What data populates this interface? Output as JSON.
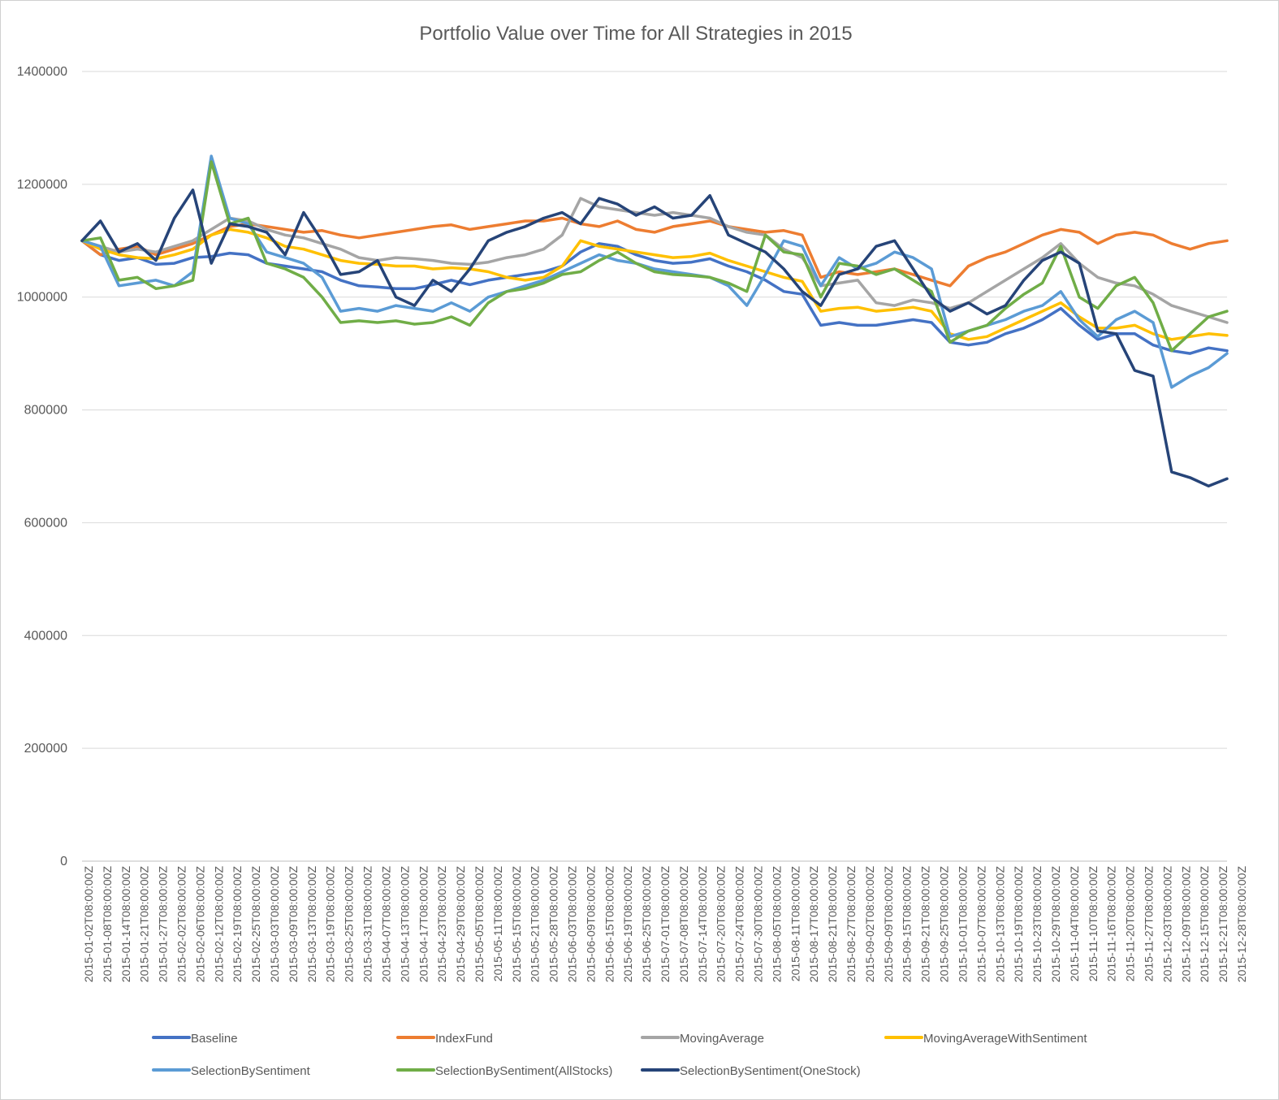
{
  "chart_data": {
    "type": "line",
    "title": "Portfolio Value over Time for All Strategies in 2015",
    "xlabel": "",
    "ylabel": "",
    "ylim": [
      0,
      1400000
    ],
    "yticks": [
      0,
      200000,
      400000,
      600000,
      800000,
      1000000,
      1200000,
      1400000
    ],
    "grid": true,
    "legend": "bottom",
    "x_tick_labels": [
      "2015-01-02T08:00:00Z",
      "2015-01-08T08:00:00Z",
      "2015-01-14T08:00:00Z",
      "2015-01-21T08:00:00Z",
      "2015-01-27T08:00:00Z",
      "2015-02-02T08:00:00Z",
      "2015-02-06T08:00:00Z",
      "2015-02-12T08:00:00Z",
      "2015-02-19T08:00:00Z",
      "2015-02-25T08:00:00Z",
      "2015-03-03T08:00:00Z",
      "2015-03-09T08:00:00Z",
      "2015-03-13T08:00:00Z",
      "2015-03-19T08:00:00Z",
      "2015-03-25T08:00:00Z",
      "2015-03-31T08:00:00Z",
      "2015-04-07T08:00:00Z",
      "2015-04-13T08:00:00Z",
      "2015-04-17T08:00:00Z",
      "2015-04-23T08:00:00Z",
      "2015-04-29T08:00:00Z",
      "2015-05-05T08:00:00Z",
      "2015-05-11T08:00:00Z",
      "2015-05-15T08:00:00Z",
      "2015-05-21T08:00:00Z",
      "2015-05-28T08:00:00Z",
      "2015-06-03T08:00:00Z",
      "2015-06-09T08:00:00Z",
      "2015-06-15T08:00:00Z",
      "2015-06-19T08:00:00Z",
      "2015-06-25T08:00:00Z",
      "2015-07-01T08:00:00Z",
      "2015-07-08T08:00:00Z",
      "2015-07-14T08:00:00Z",
      "2015-07-20T08:00:00Z",
      "2015-07-24T08:00:00Z",
      "2015-07-30T08:00:00Z",
      "2015-08-05T08:00:00Z",
      "2015-08-11T08:00:00Z",
      "2015-08-17T08:00:00Z",
      "2015-08-21T08:00:00Z",
      "2015-08-27T08:00:00Z",
      "2015-09-02T08:00:00Z",
      "2015-09-09T08:00:00Z",
      "2015-09-15T08:00:00Z",
      "2015-09-21T08:00:00Z",
      "2015-09-25T08:00:00Z",
      "2015-10-01T08:00:00Z",
      "2015-10-07T08:00:00Z",
      "2015-10-13T08:00:00Z",
      "2015-10-19T08:00:00Z",
      "2015-10-23T08:00:00Z",
      "2015-10-29T08:00:00Z",
      "2015-11-04T08:00:00Z",
      "2015-11-10T08:00:00Z",
      "2015-11-16T08:00:00Z",
      "2015-11-20T08:00:00Z",
      "2015-11-27T08:00:00Z",
      "2015-12-03T08:00:00Z",
      "2015-12-09T08:00:00Z",
      "2015-12-15T08:00:00Z",
      "2015-12-21T08:00:00Z",
      "2015-12-28T08:00:00Z"
    ],
    "series": [
      {
        "name": "Baseline",
        "color": "#4472c4",
        "values": [
          1100000,
          1075000,
          1065000,
          1070000,
          1058000,
          1060000,
          1070000,
          1072000,
          1078000,
          1075000,
          1060000,
          1055000,
          1050000,
          1045000,
          1030000,
          1020000,
          1018000,
          1015000,
          1015000,
          1022000,
          1030000,
          1022000,
          1030000,
          1035000,
          1040000,
          1045000,
          1055000,
          1080000,
          1095000,
          1090000,
          1075000,
          1065000,
          1060000,
          1062000,
          1068000,
          1055000,
          1045000,
          1030000,
          1010000,
          1005000,
          950000,
          955000,
          950000,
          950000,
          955000,
          960000,
          955000,
          920000,
          915000,
          920000,
          935000,
          945000,
          960000,
          980000,
          950000,
          925000,
          935000,
          935000,
          915000,
          905000,
          900000,
          910000,
          905000
        ]
      },
      {
        "name": "IndexFund",
        "color": "#ed7d31",
        "values": [
          1100000,
          1075000,
          1085000,
          1090000,
          1075000,
          1085000,
          1095000,
          1110000,
          1125000,
          1130000,
          1125000,
          1120000,
          1115000,
          1118000,
          1110000,
          1105000,
          1110000,
          1115000,
          1120000,
          1125000,
          1128000,
          1120000,
          1125000,
          1130000,
          1135000,
          1135000,
          1140000,
          1130000,
          1125000,
          1135000,
          1120000,
          1115000,
          1125000,
          1130000,
          1135000,
          1125000,
          1120000,
          1115000,
          1118000,
          1110000,
          1035000,
          1045000,
          1040000,
          1045000,
          1050000,
          1040000,
          1030000,
          1020000,
          1055000,
          1070000,
          1080000,
          1095000,
          1110000,
          1120000,
          1115000,
          1095000,
          1110000,
          1115000,
          1110000,
          1095000,
          1085000,
          1095000,
          1100000
        ]
      },
      {
        "name": "MovingAverage",
        "color": "#a5a5a5",
        "values": [
          1100000,
          1090000,
          1080000,
          1085000,
          1080000,
          1090000,
          1100000,
          1120000,
          1140000,
          1135000,
          1120000,
          1110000,
          1105000,
          1095000,
          1085000,
          1070000,
          1065000,
          1070000,
          1068000,
          1065000,
          1060000,
          1058000,
          1062000,
          1070000,
          1075000,
          1085000,
          1110000,
          1175000,
          1160000,
          1155000,
          1150000,
          1145000,
          1150000,
          1145000,
          1140000,
          1125000,
          1115000,
          1110000,
          1085000,
          1070000,
          1020000,
          1025000,
          1030000,
          990000,
          985000,
          995000,
          990000,
          980000,
          990000,
          1010000,
          1030000,
          1050000,
          1070000,
          1095000,
          1060000,
          1035000,
          1025000,
          1020000,
          1005000,
          985000,
          975000,
          965000,
          955000
        ]
      },
      {
        "name": "MovingAverageWithSentiment",
        "color": "#ffc000",
        "values": [
          1100000,
          1085000,
          1075000,
          1070000,
          1068000,
          1075000,
          1085000,
          1110000,
          1120000,
          1115000,
          1105000,
          1090000,
          1085000,
          1075000,
          1065000,
          1060000,
          1058000,
          1055000,
          1055000,
          1050000,
          1052000,
          1050000,
          1045000,
          1035000,
          1030000,
          1035000,
          1055000,
          1100000,
          1090000,
          1085000,
          1080000,
          1075000,
          1070000,
          1072000,
          1078000,
          1065000,
          1055000,
          1045000,
          1035000,
          1028000,
          975000,
          980000,
          982000,
          975000,
          978000,
          982000,
          975000,
          935000,
          925000,
          930000,
          945000,
          960000,
          975000,
          990000,
          965000,
          945000,
          945000,
          950000,
          935000,
          925000,
          930000,
          935000,
          932000
        ]
      },
      {
        "name": "SelectionBySentiment",
        "color": "#5b9bd5",
        "values": [
          1100000,
          1090000,
          1020000,
          1025000,
          1030000,
          1020000,
          1045000,
          1250000,
          1140000,
          1130000,
          1080000,
          1070000,
          1060000,
          1035000,
          975000,
          980000,
          975000,
          985000,
          980000,
          975000,
          990000,
          975000,
          1000000,
          1010000,
          1020000,
          1030000,
          1045000,
          1060000,
          1075000,
          1065000,
          1060000,
          1050000,
          1045000,
          1040000,
          1035000,
          1020000,
          985000,
          1040000,
          1100000,
          1090000,
          1020000,
          1070000,
          1050000,
          1060000,
          1080000,
          1070000,
          1050000,
          930000,
          940000,
          950000,
          960000,
          975000,
          985000,
          1010000,
          960000,
          930000,
          960000,
          975000,
          955000,
          840000,
          860000,
          875000,
          900000
        ]
      },
      {
        "name": "SelectionBySentiment(AllStocks)",
        "color": "#70ad47",
        "values": [
          1100000,
          1105000,
          1030000,
          1035000,
          1015000,
          1020000,
          1030000,
          1240000,
          1130000,
          1140000,
          1060000,
          1050000,
          1035000,
          1000000,
          955000,
          958000,
          955000,
          958000,
          952000,
          955000,
          965000,
          950000,
          990000,
          1010000,
          1015000,
          1025000,
          1040000,
          1045000,
          1065000,
          1080000,
          1060000,
          1045000,
          1040000,
          1038000,
          1035000,
          1025000,
          1010000,
          1110000,
          1080000,
          1075000,
          1000000,
          1060000,
          1055000,
          1040000,
          1050000,
          1030000,
          1010000,
          920000,
          940000,
          950000,
          980000,
          1005000,
          1025000,
          1090000,
          1000000,
          980000,
          1020000,
          1035000,
          990000,
          905000,
          935000,
          965000,
          975000
        ]
      },
      {
        "name": "SelectionBySentiment(OneStock)",
        "color": "#264478",
        "values": [
          1100000,
          1135000,
          1080000,
          1095000,
          1065000,
          1140000,
          1190000,
          1060000,
          1130000,
          1125000,
          1115000,
          1075000,
          1150000,
          1100000,
          1040000,
          1045000,
          1065000,
          1000000,
          985000,
          1030000,
          1010000,
          1050000,
          1100000,
          1115000,
          1125000,
          1140000,
          1150000,
          1130000,
          1175000,
          1165000,
          1145000,
          1160000,
          1140000,
          1145000,
          1180000,
          1110000,
          1095000,
          1080000,
          1050000,
          1010000,
          985000,
          1040000,
          1050000,
          1090000,
          1100000,
          1050000,
          1000000,
          975000,
          990000,
          970000,
          985000,
          1030000,
          1065000,
          1080000,
          1060000,
          940000,
          935000,
          870000,
          860000,
          690000,
          680000,
          665000,
          678000
        ]
      }
    ]
  }
}
